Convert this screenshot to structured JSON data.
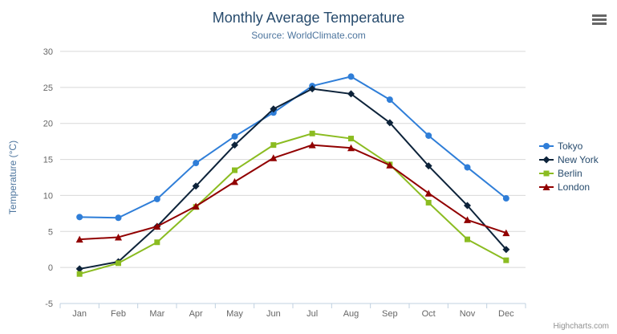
{
  "credits": "Highcharts.com",
  "export_menu": {
    "icon": "hamburger-icon"
  },
  "chart_data": {
    "type": "line",
    "title": "Monthly Average Temperature",
    "subtitle": "Source: WorldClimate.com",
    "xlabel": "",
    "ylabel": "Temperature (°C)",
    "ylim": [
      -5,
      30
    ],
    "ytick_step": 5,
    "grid": true,
    "legend_position": "right",
    "categories": [
      "Jan",
      "Feb",
      "Mar",
      "Apr",
      "May",
      "Jun",
      "Jul",
      "Aug",
      "Sep",
      "Oct",
      "Nov",
      "Dec"
    ],
    "series": [
      {
        "name": "Tokyo",
        "color": "#2f7ed8",
        "marker": "circle",
        "values": [
          7.0,
          6.9,
          9.5,
          14.5,
          18.2,
          21.5,
          25.2,
          26.5,
          23.3,
          18.3,
          13.9,
          9.6
        ]
      },
      {
        "name": "New York",
        "color": "#0d233a",
        "marker": "diamond",
        "values": [
          -0.2,
          0.8,
          5.7,
          11.3,
          17.0,
          22.0,
          24.8,
          24.1,
          20.1,
          14.1,
          8.6,
          2.5
        ]
      },
      {
        "name": "Berlin",
        "color": "#8bbc21",
        "marker": "square",
        "values": [
          -0.9,
          0.6,
          3.5,
          8.4,
          13.5,
          17.0,
          18.6,
          17.9,
          14.3,
          9.0,
          3.9,
          1.0
        ]
      },
      {
        "name": "London",
        "color": "#910000",
        "marker": "triangle",
        "values": [
          3.9,
          4.2,
          5.7,
          8.5,
          11.9,
          15.2,
          17.0,
          16.6,
          14.2,
          10.3,
          6.6,
          4.8
        ]
      }
    ]
  }
}
